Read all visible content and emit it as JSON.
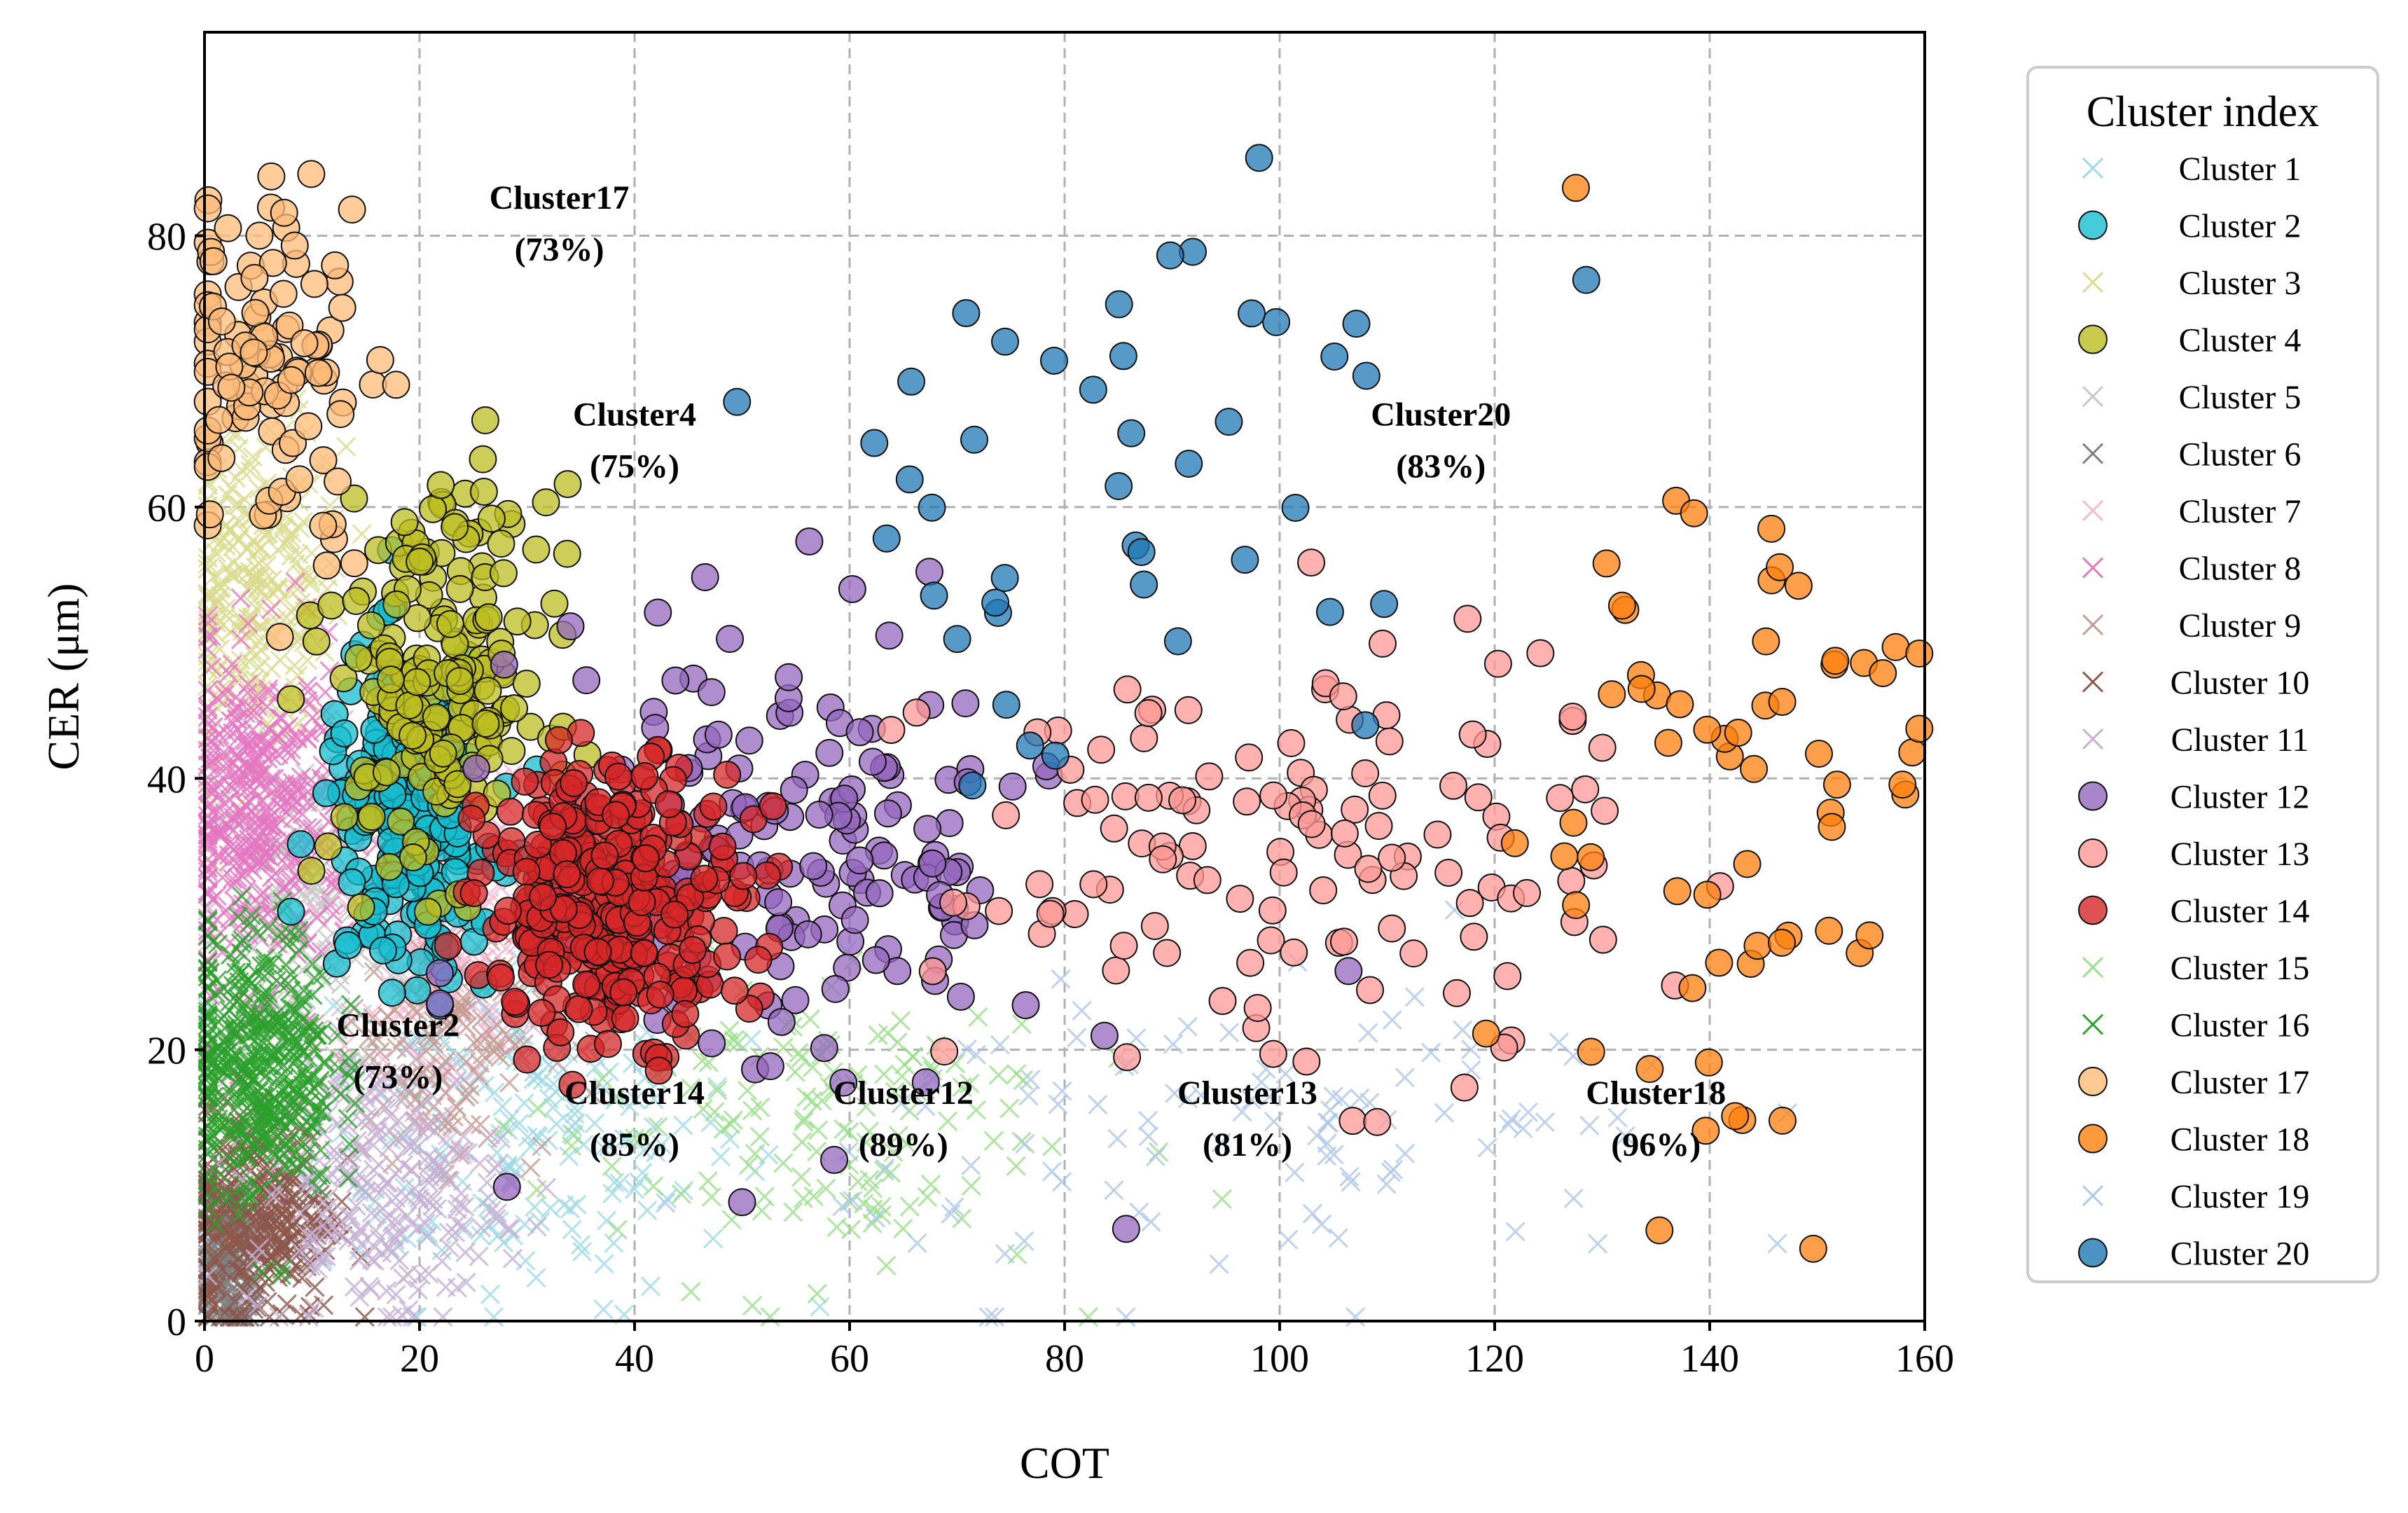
{
  "chart_data": {
    "type": "scatter",
    "xlabel": "COT",
    "ylabel": "CER (μm)",
    "xlim": [
      0,
      160
    ],
    "ylim": [
      0,
      95
    ],
    "xticks": [
      0,
      20,
      40,
      60,
      80,
      100,
      120,
      140,
      160
    ],
    "yticks": [
      0,
      20,
      40,
      60,
      80
    ],
    "grid": true,
    "legend": {
      "title": "Cluster index",
      "placement": "outside-right"
    },
    "series": [
      {
        "name": "Cluster 1",
        "marker": "x",
        "color": "#9edae5",
        "cx": 30,
        "cy": 15,
        "sx": 10,
        "sy": 7,
        "n": 220
      },
      {
        "name": "Cluster 2",
        "marker": "o",
        "color": "#17becf",
        "cx": 19,
        "cy": 37,
        "sx": 4,
        "sy": 6,
        "n": 220
      },
      {
        "name": "Cluster 3",
        "marker": "x",
        "color": "#dbdb8d",
        "cx": 5,
        "cy": 54,
        "sx": 4,
        "sy": 6,
        "n": 260
      },
      {
        "name": "Cluster 4",
        "marker": "o",
        "color": "#bcbd22",
        "cx": 22,
        "cy": 47,
        "sx": 5,
        "sy": 7,
        "n": 200
      },
      {
        "name": "Cluster 5",
        "marker": "x",
        "color": "#c7c7c7",
        "cx": 10,
        "cy": 30,
        "sx": 5,
        "sy": 6,
        "n": 180
      },
      {
        "name": "Cluster 6",
        "marker": "x",
        "color": "#7f7f7f",
        "cx": 2,
        "cy": 4,
        "sx": 1.5,
        "sy": 3,
        "n": 160
      },
      {
        "name": "Cluster 7",
        "marker": "x",
        "color": "#f7b6d2",
        "cx": 22,
        "cy": 28,
        "sx": 4,
        "sy": 6,
        "n": 180
      },
      {
        "name": "Cluster 8",
        "marker": "x",
        "color": "#e377c2",
        "cx": 5,
        "cy": 37,
        "sx": 4,
        "sy": 6,
        "n": 380
      },
      {
        "name": "Cluster 9",
        "marker": "x",
        "color": "#c49c94",
        "cx": 22,
        "cy": 22,
        "sx": 5,
        "sy": 5,
        "n": 180
      },
      {
        "name": "Cluster 10",
        "marker": "x",
        "color": "#8c564b",
        "cx": 5,
        "cy": 8,
        "sx": 3.5,
        "sy": 4,
        "n": 340
      },
      {
        "name": "Cluster 11",
        "marker": "x",
        "color": "#c5b0d5",
        "cx": 16,
        "cy": 10,
        "sx": 6,
        "sy": 5,
        "n": 240
      },
      {
        "name": "Cluster 12",
        "marker": "o",
        "color": "#9467bd",
        "cx": 55,
        "cy": 34,
        "sx": 12,
        "sy": 9,
        "n": 170
      },
      {
        "name": "Cluster 13",
        "marker": "o",
        "color": "#ff9896",
        "cx": 100,
        "cy": 34,
        "sx": 16,
        "sy": 8,
        "n": 130
      },
      {
        "name": "Cluster 14",
        "marker": "o",
        "color": "#d62728",
        "cx": 38,
        "cy": 31,
        "sx": 6,
        "sy": 5,
        "n": 330
      },
      {
        "name": "Cluster 15",
        "marker": "x",
        "color": "#98df8a",
        "cx": 55,
        "cy": 15,
        "sx": 12,
        "sy": 6,
        "n": 150
      },
      {
        "name": "Cluster 16",
        "marker": "x",
        "color": "#2ca02c",
        "cx": 5,
        "cy": 19,
        "sx": 3.5,
        "sy": 5,
        "n": 420
      },
      {
        "name": "Cluster 17",
        "marker": "o",
        "color": "#ffbb78",
        "cx": 6,
        "cy": 71,
        "sx": 5,
        "sy": 7,
        "n": 110
      },
      {
        "name": "Cluster 18",
        "marker": "o",
        "color": "#ff7f0e",
        "cx": 140,
        "cy": 38,
        "sx": 10,
        "sy": 15,
        "n": 65
      },
      {
        "name": "Cluster 19",
        "marker": "x",
        "color": "#aec7e8",
        "cx": 100,
        "cy": 14,
        "sx": 20,
        "sy": 6,
        "n": 110
      },
      {
        "name": "Cluster 20",
        "marker": "o",
        "color": "#1f77b4",
        "cx": 85,
        "cy": 62,
        "sx": 18,
        "sy": 11,
        "n": 44
      }
    ],
    "annotations": [
      {
        "name": "Cluster17",
        "pct": "(73%)",
        "x": 33,
        "y": 82
      },
      {
        "name": "Cluster4",
        "pct": "(75%)",
        "x": 40,
        "y": 66
      },
      {
        "name": "Cluster20",
        "pct": "(83%)",
        "x": 115,
        "y": 66
      },
      {
        "name": "Cluster2",
        "pct": "(73%)",
        "x": 18,
        "y": 21
      },
      {
        "name": "Cluster14",
        "pct": "(85%)",
        "x": 40,
        "y": 16
      },
      {
        "name": "Cluster12",
        "pct": "(89%)",
        "x": 65,
        "y": 16
      },
      {
        "name": "Cluster13",
        "pct": "(81%)",
        "x": 97,
        "y": 16
      },
      {
        "name": "Cluster18",
        "pct": "(96%)",
        "x": 135,
        "y": 16
      }
    ]
  }
}
